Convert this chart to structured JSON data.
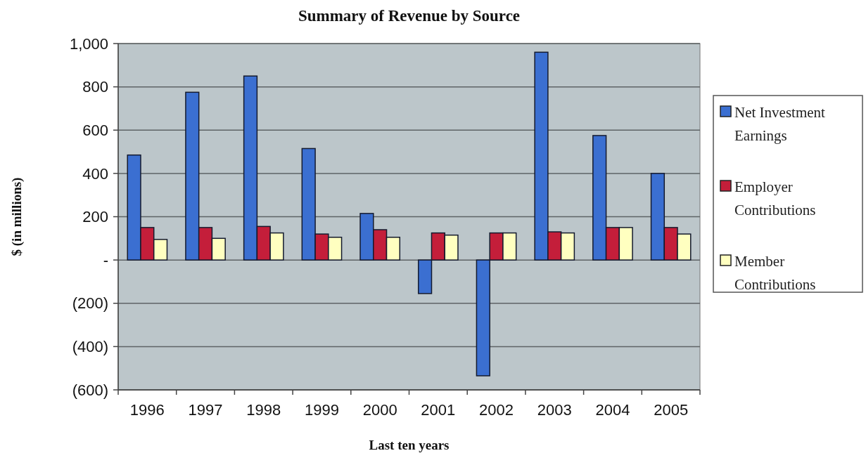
{
  "chart_data": {
    "type": "bar",
    "title": "Summary of Revenue by Source",
    "xlabel": "Last ten years",
    "ylabel": "$ (in millions)",
    "categories": [
      "1996",
      "1997",
      "1998",
      "1999",
      "2000",
      "2001",
      "2002",
      "2003",
      "2004",
      "2005"
    ],
    "series": [
      {
        "name": "Net Investment Earnings",
        "color": "#3b6fd1",
        "values": [
          485,
          775,
          850,
          515,
          215,
          -155,
          -535,
          960,
          575,
          400
        ]
      },
      {
        "name": "Employer Contributions",
        "color": "#c41e3a",
        "values": [
          150,
          150,
          155,
          120,
          140,
          125,
          125,
          130,
          150,
          150
        ]
      },
      {
        "name": "Member Contributions",
        "color": "#ffffc0",
        "values": [
          95,
          100,
          125,
          105,
          105,
          115,
          125,
          125,
          150,
          120
        ]
      }
    ],
    "ylim": [
      -600,
      1000
    ],
    "yticks": [
      {
        "value": 1000,
        "label": "1,000"
      },
      800,
      600,
      400,
      200,
      {
        "value": 0,
        "label": "-"
      },
      {
        "value": -200,
        "label": "(200)"
      },
      {
        "value": -400,
        "label": "(400)"
      },
      {
        "value": -600,
        "label": "(600)"
      }
    ],
    "grid": "y",
    "legend": "right"
  }
}
